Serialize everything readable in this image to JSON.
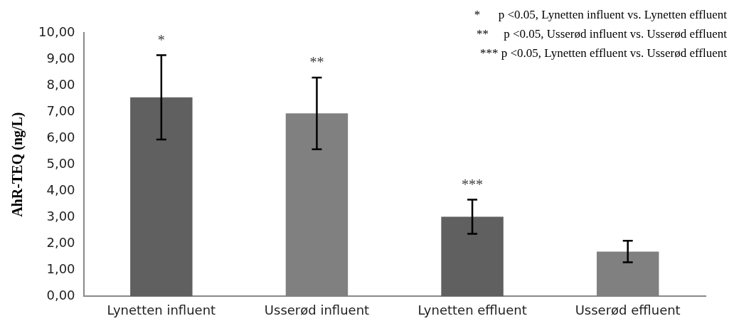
{
  "chart_data": {
    "type": "bar",
    "ylabel": "AhR-TEQ (ng/L)",
    "categories": [
      "Lynetten influent",
      "Usserød influent",
      "Lynetten effluent",
      "Usserød effluent"
    ],
    "values": [
      7.55,
      6.94,
      3.02,
      1.7
    ],
    "colors": [
      "#606060",
      "#808080",
      "#606060",
      "#808080"
    ],
    "errors": [
      1.6,
      1.36,
      0.65,
      0.41
    ],
    "ylim": [
      0,
      10
    ],
    "yticks": [
      {
        "value": 0,
        "label": "0,00"
      },
      {
        "value": 1,
        "label": "1,00"
      },
      {
        "value": 2,
        "label": "2,00"
      },
      {
        "value": 3,
        "label": "3,00"
      },
      {
        "value": 4,
        "label": "4,00"
      },
      {
        "value": 5,
        "label": "5,00"
      },
      {
        "value": 6,
        "label": "6,00"
      },
      {
        "value": 7,
        "label": "7,00"
      },
      {
        "value": 8,
        "label": "8,00"
      },
      {
        "value": 9,
        "label": "9,00"
      },
      {
        "value": 10,
        "label": "10,00"
      }
    ],
    "grid": false,
    "legend": false,
    "annotations": [
      {
        "text": "*",
        "x": "Lynetten influent",
        "y": 9.15
      },
      {
        "text": "**",
        "x": "Usserød influent",
        "y": 8.3
      },
      {
        "text": "***",
        "x": "Lynetten effluent",
        "y": 3.67
      },
      "*      p <0.05, Lynetten influent vs. Lynetten effluent",
      "**     p <0.05, Usserød influent vs. Usserød effluent",
      "*** p <0.05, Lynetten effluent vs. Usserød effluent"
    ]
  }
}
